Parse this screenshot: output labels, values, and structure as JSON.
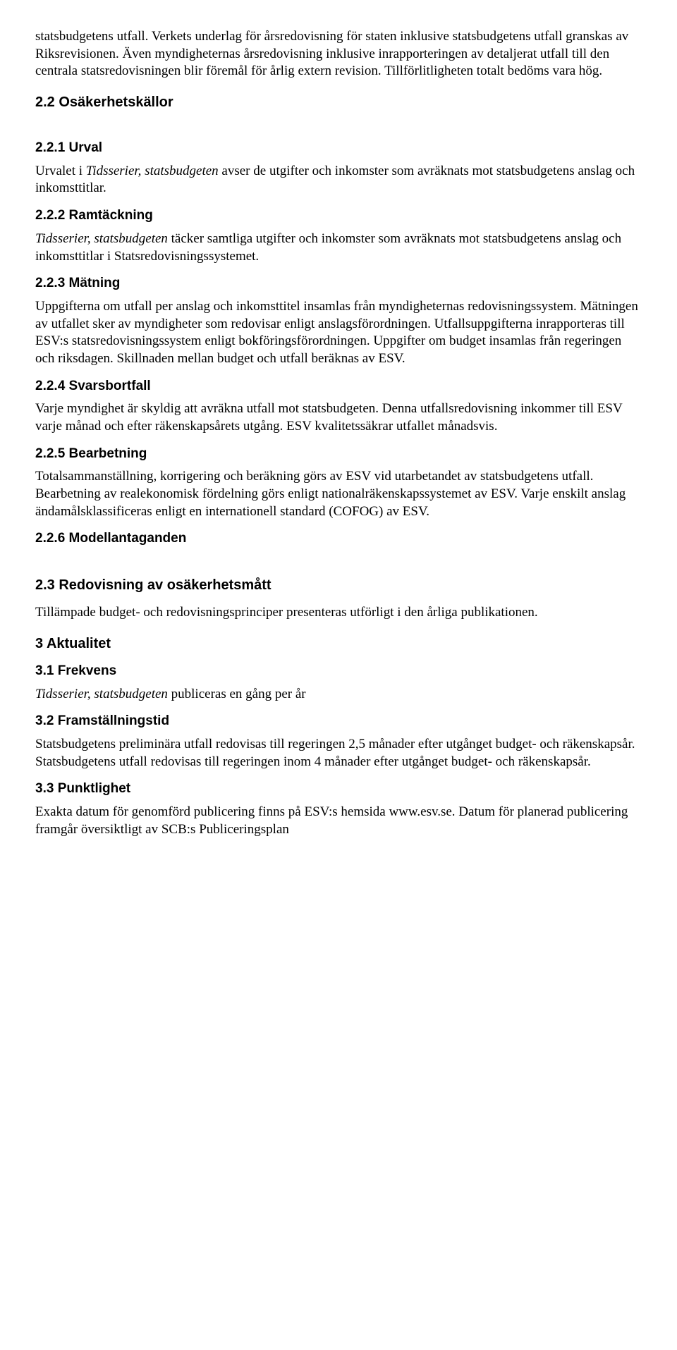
{
  "p0": "statsbudgetens utfall. Verkets underlag för årsredovisning för staten inklusive statsbudgetens utfall granskas av Riksrevisionen. Även myndigheternas årsredovisning inklusive inrapporteringen av detaljerat utfall till den centrala statsredovisningen blir föremål för årlig extern revision. Tillförlitligheten totalt bedöms vara hög.",
  "h_2_2": "2.2 Osäkerhetskällor",
  "h_2_2_1": "2.2.1 Urval",
  "p_2_2_1_a": "Urvalet i ",
  "p_2_2_1_b": "Tidsserier, statsbudgeten",
  "p_2_2_1_c": " avser de utgifter och inkomster som avräknats mot statsbudgetens anslag och inkomsttitlar.",
  "h_2_2_2": "2.2.2 Ramtäckning",
  "p_2_2_2_a": "Tidsserier, statsbudgeten",
  "p_2_2_2_b": " täcker samtliga utgifter och inkomster som avräknats mot statsbudgetens anslag och inkomsttitlar i Statsredovisningssystemet.",
  "h_2_2_3": "2.2.3 Mätning",
  "p_2_2_3": "Uppgifterna om utfall per anslag och inkomsttitel insamlas från myndigheternas redovisningssystem. Mätningen av utfallet sker av myndigheter som redovisar enligt anslagsförordningen. Utfallsuppgifterna inrapporteras till ESV:s statsredovisningssystem enligt bokföringsförordningen. Uppgifter om budget insamlas från regeringen och riksdagen. Skillnaden mellan budget och utfall beräknas av ESV.",
  "h_2_2_4": "2.2.4 Svarsbortfall",
  "p_2_2_4": "Varje myndighet är skyldig att avräkna utfall mot statsbudgeten. Denna utfallsredovisning inkommer till ESV varje månad och efter räkenskapsårets utgång. ESV kvalitetssäkrar utfallet månadsvis.",
  "h_2_2_5": "2.2.5 Bearbetning",
  "p_2_2_5": "Totalsammanställning, korrigering och beräkning görs av ESV vid utarbetandet av statsbudgetens utfall. Bearbetning av realekonomisk fördelning görs enligt nationalräkenskapssystemet av ESV. Varje enskilt anslag ändamålsklassificeras enligt en internationell standard (COFOG) av ESV.",
  "h_2_2_6": "2.2.6 Modellantaganden",
  "h_2_3": "2.3 Redovisning av osäkerhetsmått",
  "p_2_3": "Tillämpade budget- och redovisningsprinciper presenteras utförligt i den årliga publikationen.",
  "h_3": "3 Aktualitet",
  "h_3_1": "3.1 Frekvens",
  "p_3_1_a": "Tidsserier, statsbudgeten",
  "p_3_1_b": " publiceras en gång per år",
  "h_3_2": "3.2 Framställningstid",
  "p_3_2": "Statsbudgetens preliminära utfall redovisas till regeringen 2,5 månader efter utgånget budget- och räkenskapsår. Statsbudgetens utfall redovisas till regeringen inom 4 månader efter utgånget budget- och räkenskapsår.",
  "h_3_3": "3.3 Punktlighet",
  "p_3_3": "Exakta datum för genomförd publicering finns på ESV:s hemsida www.esv.se. Datum för planerad publicering framgår översiktligt av SCB:s Publiceringsplan"
}
